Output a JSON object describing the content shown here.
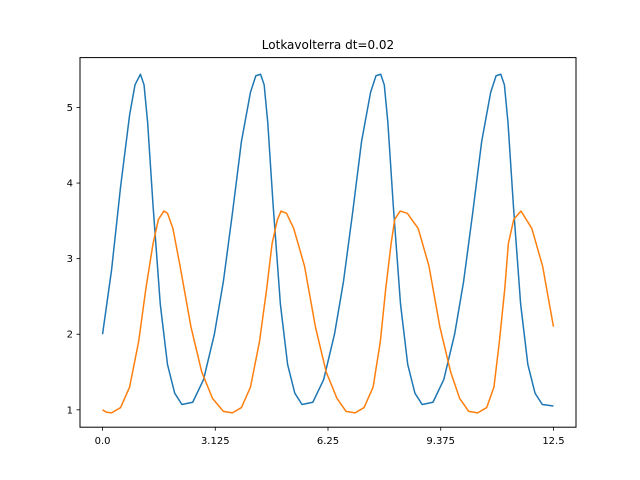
{
  "chart_data": {
    "type": "line",
    "title": "Lotkavolterra  dt=0.02",
    "xlabel": "",
    "ylabel": "",
    "xlim": [
      -0.625,
      13.125
    ],
    "ylim": [
      0.77,
      5.66
    ],
    "x_ticks": [
      0.0,
      3.125,
      6.25,
      9.375,
      12.5
    ],
    "x_tick_labels": [
      "0.0",
      "3.125",
      "6.25",
      "9.375",
      "12.5"
    ],
    "y_ticks": [
      1,
      2,
      3,
      4,
      5
    ],
    "y_tick_labels": [
      "1",
      "2",
      "3",
      "4",
      "5"
    ],
    "grid": false,
    "legend": "none",
    "series": [
      {
        "color": "#1f77b4",
        "x": [
          0.0,
          0.25,
          0.5,
          0.75,
          0.9,
          1.05,
          1.15,
          1.25,
          1.4,
          1.6,
          1.8,
          2.0,
          2.2,
          2.5,
          2.8,
          3.1,
          3.35,
          3.6,
          3.85,
          4.1,
          4.25,
          4.38,
          4.48,
          4.58,
          4.73,
          4.93,
          5.13,
          5.33,
          5.53,
          5.83,
          6.13,
          6.43,
          6.68,
          6.93,
          7.18,
          7.43,
          7.58,
          7.71,
          7.81,
          7.91,
          8.06,
          8.26,
          8.46,
          8.66,
          8.86,
          9.16,
          9.46,
          9.76,
          10.01,
          10.26,
          10.51,
          10.76,
          10.91,
          11.04,
          11.14,
          11.24,
          11.39,
          11.59,
          11.79,
          11.99,
          12.19,
          12.5
        ],
        "y": [
          2.0,
          2.85,
          3.95,
          4.9,
          5.3,
          5.44,
          5.3,
          4.8,
          3.7,
          2.4,
          1.6,
          1.22,
          1.07,
          1.1,
          1.4,
          2.0,
          2.7,
          3.6,
          4.55,
          5.2,
          5.42,
          5.44,
          5.3,
          4.8,
          3.7,
          2.4,
          1.6,
          1.22,
          1.07,
          1.1,
          1.4,
          2.0,
          2.7,
          3.6,
          4.55,
          5.2,
          5.42,
          5.44,
          5.3,
          4.8,
          3.7,
          2.4,
          1.6,
          1.22,
          1.07,
          1.1,
          1.4,
          2.0,
          2.7,
          3.6,
          4.55,
          5.2,
          5.42,
          5.44,
          5.3,
          4.8,
          3.7,
          2.4,
          1.6,
          1.22,
          1.07,
          1.05
        ]
      },
      {
        "color": "#ff7f0e",
        "x": [
          0.0,
          0.1,
          0.25,
          0.5,
          0.75,
          1.0,
          1.2,
          1.4,
          1.55,
          1.7,
          1.8,
          1.95,
          2.15,
          2.45,
          2.75,
          3.05,
          3.35,
          3.6,
          3.85,
          4.1,
          4.35,
          4.55,
          4.7,
          4.85,
          4.95,
          5.1,
          5.3,
          5.6,
          5.9,
          6.2,
          6.5,
          6.75,
          7.0,
          7.25,
          7.5,
          7.7,
          7.85,
          8.0,
          8.1,
          8.25,
          8.45,
          8.75,
          9.05,
          9.35,
          9.65,
          9.9,
          10.15,
          10.4,
          10.65,
          10.85,
          11.0,
          11.15,
          11.25,
          11.4,
          11.6,
          11.9,
          12.2,
          12.5
        ],
        "y": [
          1.0,
          0.97,
          0.96,
          1.03,
          1.3,
          1.9,
          2.6,
          3.2,
          3.52,
          3.63,
          3.6,
          3.4,
          2.9,
          2.1,
          1.5,
          1.15,
          0.98,
          0.96,
          1.03,
          1.3,
          1.9,
          2.6,
          3.2,
          3.52,
          3.63,
          3.6,
          3.4,
          2.9,
          2.1,
          1.5,
          1.15,
          0.98,
          0.96,
          1.03,
          1.3,
          1.9,
          2.6,
          3.2,
          3.52,
          3.63,
          3.6,
          3.4,
          2.9,
          2.1,
          1.5,
          1.15,
          0.98,
          0.96,
          1.03,
          1.3,
          1.9,
          2.6,
          3.2,
          3.52,
          3.63,
          3.4,
          2.9,
          2.1
        ]
      }
    ]
  }
}
